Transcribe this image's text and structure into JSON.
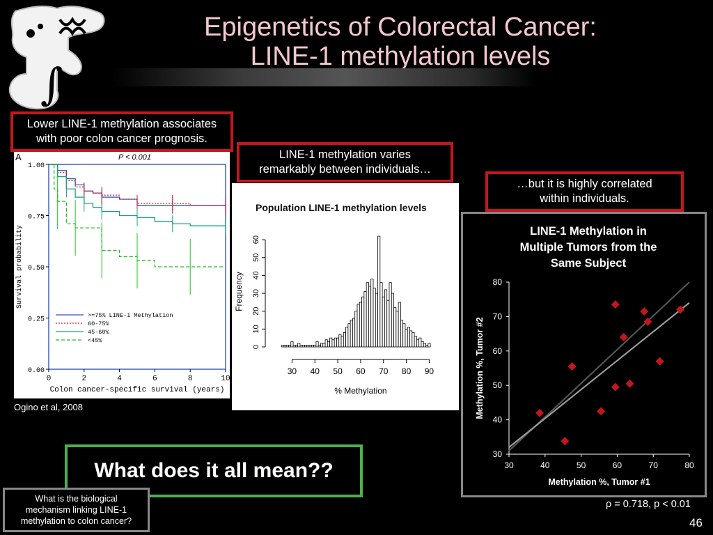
{
  "slide": {
    "title_line1": "Epigenetics of Colorectal Cancer:",
    "title_line2": "LINE-1 methylation levels",
    "page_number": "46",
    "colors": {
      "title": "#f4c8cc",
      "red_box": "#c4161c",
      "green_box": "#4caf50",
      "gray_box": "#888888"
    }
  },
  "callouts": {
    "box1_line1": "Lower LINE-1 methylation associates",
    "box1_line2": "with poor colon cancer prognosis.",
    "box2_line1": "LINE-1 methylation varies",
    "box2_line2": "remarkably between individuals…",
    "box3_line1": "…but it is highly correlated",
    "box3_line2": "within individuals."
  },
  "citation": "Ogino et al, 2008",
  "question": "What does it all mean??",
  "mechanism_line1": "What is the biological",
  "mechanism_line2": "mechanism linking LINE-1",
  "mechanism_line3": "methylation to colon cancer?",
  "stats": "ρ = 0.718, p < 0.01",
  "chart_data": [
    {
      "type": "line",
      "panel_label": "A",
      "annotation": "P < 0.001",
      "xlabel": "Colon cancer-specific survival (years)",
      "ylabel": "Survival probability",
      "xlim": [
        0,
        10
      ],
      "ylim": [
        0,
        1
      ],
      "x_ticks": [
        "0",
        "2",
        "4",
        "6",
        "8",
        "10"
      ],
      "y_ticks": [
        "0.00",
        "0.25",
        "0.50",
        "0.75",
        "1.00"
      ],
      "legend_position": "bottom-left",
      "series": [
        {
          "name": ">=75% LINE-1 Methylation",
          "color": "#3050c8",
          "dash": "solid",
          "x": [
            0,
            0.5,
            1,
            1.5,
            2,
            2.5,
            3,
            4,
            5,
            6,
            7,
            8,
            10
          ],
          "y": [
            1.0,
            0.97,
            0.93,
            0.9,
            0.87,
            0.86,
            0.84,
            0.83,
            0.8,
            0.8,
            0.8,
            0.8,
            0.8
          ]
        },
        {
          "name": "60-75%",
          "color": "#d02020",
          "dash": "dotted",
          "x": [
            0,
            0.5,
            1,
            1.5,
            2,
            2.5,
            3,
            4,
            5,
            6,
            7,
            8,
            10
          ],
          "y": [
            1.0,
            0.96,
            0.92,
            0.89,
            0.87,
            0.86,
            0.85,
            0.83,
            0.81,
            0.81,
            0.81,
            0.8,
            0.8
          ]
        },
        {
          "name": "45-60%",
          "color": "#18a080",
          "dash": "solid",
          "x": [
            0,
            0.5,
            1,
            1.5,
            2,
            2.5,
            3,
            4,
            5,
            6,
            7,
            8,
            10
          ],
          "y": [
            1.0,
            0.94,
            0.88,
            0.84,
            0.81,
            0.79,
            0.77,
            0.75,
            0.74,
            0.72,
            0.71,
            0.7,
            0.7
          ]
        },
        {
          "name": "<45%",
          "color": "#20c020",
          "dash": "dashed",
          "x": [
            0,
            0.3,
            0.5,
            1,
            1.5,
            2,
            3,
            4,
            5,
            6,
            8,
            10
          ],
          "y": [
            1.0,
            0.88,
            0.82,
            0.71,
            0.69,
            0.69,
            0.58,
            0.55,
            0.53,
            0.5,
            0.5,
            0.5
          ]
        }
      ]
    },
    {
      "type": "bar",
      "title": "Population LINE-1 methylation levels",
      "xlabel": "% Methylation",
      "ylabel": "Frequency",
      "xlim": [
        25,
        92
      ],
      "ylim": [
        0,
        62
      ],
      "x_ticks": [
        "30",
        "40",
        "50",
        "60",
        "70",
        "80",
        "90"
      ],
      "y_ticks": [
        "0",
        "10",
        "20",
        "30",
        "40",
        "50",
        "60"
      ],
      "x": [
        26,
        27,
        28,
        29,
        30,
        31,
        32,
        33,
        34,
        35,
        36,
        37,
        38,
        39,
        40,
        41,
        42,
        43,
        44,
        45,
        46,
        47,
        48,
        49,
        50,
        51,
        52,
        53,
        54,
        55,
        56,
        57,
        58,
        59,
        60,
        61,
        62,
        63,
        64,
        65,
        66,
        67,
        68,
        69,
        70,
        71,
        72,
        73,
        74,
        75,
        76,
        77,
        78,
        79,
        80,
        81,
        82,
        83,
        84,
        85,
        86,
        87,
        88,
        89,
        90
      ],
      "values": [
        1,
        1,
        1,
        1,
        3,
        1,
        1,
        2,
        1,
        1,
        1,
        1,
        1,
        1,
        1,
        3,
        1,
        2,
        2,
        4,
        3,
        5,
        4,
        5,
        5,
        7,
        6,
        8,
        11,
        13,
        15,
        16,
        20,
        24,
        25,
        28,
        31,
        36,
        34,
        38,
        33,
        30,
        62,
        36,
        28,
        32,
        26,
        36,
        30,
        22,
        20,
        25,
        15,
        13,
        10,
        11,
        9,
        8,
        6,
        4,
        5,
        3,
        2,
        1,
        2
      ]
    },
    {
      "type": "scatter",
      "title": "LINE-1 Methylation in Multiple Tumors from the Same Subject",
      "xlabel": "Methylation %, Tumor #1",
      "ylabel": "Methylation %, Tumor #2",
      "xlim": [
        30,
        80
      ],
      "ylim": [
        30,
        80
      ],
      "x_ticks": [
        "30",
        "40",
        "50",
        "60",
        "70",
        "80"
      ],
      "y_ticks": [
        "30",
        "40",
        "50",
        "60",
        "70",
        "80"
      ],
      "points": [
        {
          "x": 38.5,
          "y": 42
        },
        {
          "x": 45.5,
          "y": 33.8
        },
        {
          "x": 47.5,
          "y": 55.5
        },
        {
          "x": 55.5,
          "y": 42.5
        },
        {
          "x": 59.5,
          "y": 73.5
        },
        {
          "x": 59.5,
          "y": 49.5
        },
        {
          "x": 61.8,
          "y": 64
        },
        {
          "x": 63.5,
          "y": 50.5
        },
        {
          "x": 67.5,
          "y": 71.5
        },
        {
          "x": 68.5,
          "y": 68.5
        },
        {
          "x": 71.8,
          "y": 57
        },
        {
          "x": 77.5,
          "y": 72
        }
      ],
      "lines": [
        {
          "color": "#555555",
          "x": [
            30,
            80
          ],
          "y": [
            31,
            80
          ]
        },
        {
          "color": "#9a9a9a",
          "x": [
            30,
            80
          ],
          "y": [
            32,
            74
          ]
        }
      ]
    }
  ]
}
